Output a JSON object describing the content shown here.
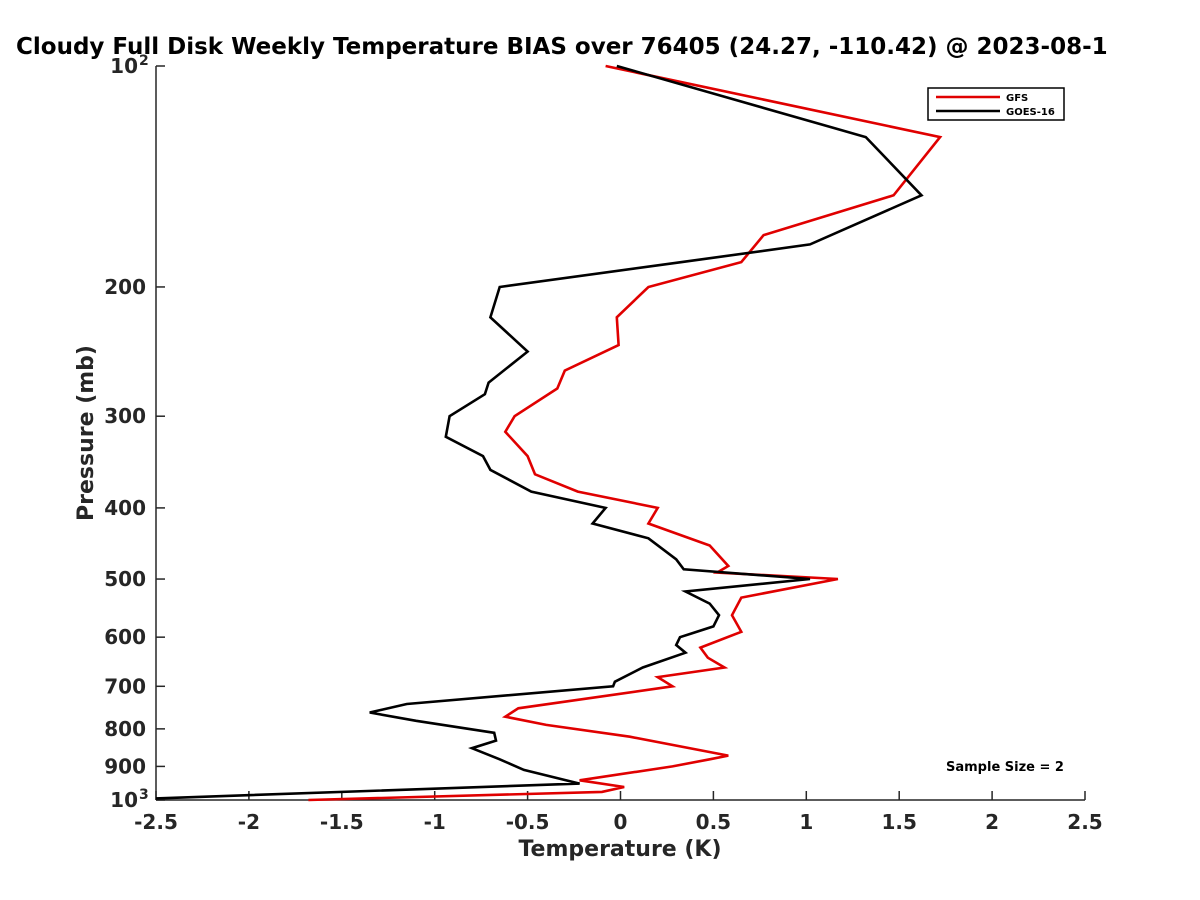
{
  "chart_data": {
    "type": "line",
    "title": "Cloudy Full Disk Weekly Temperature BIAS over 76405 (24.27, -110.42) @ 2023-08-1",
    "xlabel": "Temperature (K)",
    "ylabel": "Pressure (mb)",
    "xlim": [
      -2.5,
      2.5
    ],
    "ylim": [
      1000,
      100
    ],
    "yscale": "log",
    "x_ticks": [
      -2.5,
      -2,
      -1.5,
      -1,
      -0.5,
      0,
      0.5,
      1,
      1.5,
      2,
      2.5
    ],
    "x_tick_labels": [
      "-2.5",
      "-2",
      "-1.5",
      "-1",
      "-0.5",
      "0",
      "0.5",
      "1",
      "1.5",
      "2",
      "2.5"
    ],
    "y_ticks": [
      {
        "value": 100,
        "label": "10",
        "sup": "2"
      },
      {
        "value": 200,
        "label": "200",
        "sup": ""
      },
      {
        "value": 300,
        "label": "300",
        "sup": ""
      },
      {
        "value": 400,
        "label": "400",
        "sup": ""
      },
      {
        "value": 500,
        "label": "500",
        "sup": ""
      },
      {
        "value": 600,
        "label": "600",
        "sup": ""
      },
      {
        "value": 700,
        "label": "700",
        "sup": ""
      },
      {
        "value": 800,
        "label": "800",
        "sup": ""
      },
      {
        "value": 900,
        "label": "900",
        "sup": ""
      },
      {
        "value": 1000,
        "label": "10",
        "sup": "3"
      }
    ],
    "grid": false,
    "legend_position": "top-right",
    "series": [
      {
        "name": "GFS",
        "color": "#e00000",
        "points": [
          [
            -0.08,
            100
          ],
          [
            1.72,
            125
          ],
          [
            1.47,
            150
          ],
          [
            0.77,
            170
          ],
          [
            0.65,
            185
          ],
          [
            0.15,
            200
          ],
          [
            -0.02,
            220
          ],
          [
            -0.01,
            240
          ],
          [
            -0.3,
            260
          ],
          [
            -0.34,
            275
          ],
          [
            -0.57,
            300
          ],
          [
            -0.62,
            315
          ],
          [
            -0.5,
            340
          ],
          [
            -0.46,
            360
          ],
          [
            -0.23,
            380
          ],
          [
            0.2,
            400
          ],
          [
            0.15,
            420
          ],
          [
            0.48,
            450
          ],
          [
            0.58,
            480
          ],
          [
            0.52,
            490
          ],
          [
            1.17,
            500
          ],
          [
            0.65,
            530
          ],
          [
            0.6,
            560
          ],
          [
            0.65,
            590
          ],
          [
            0.43,
            620
          ],
          [
            0.47,
            640
          ],
          [
            0.56,
            660
          ],
          [
            0.2,
            680
          ],
          [
            0.28,
            700
          ],
          [
            -0.55,
            750
          ],
          [
            -0.62,
            770
          ],
          [
            -0.4,
            790
          ],
          [
            0.05,
            820
          ],
          [
            0.58,
            870
          ],
          [
            0.48,
            880
          ],
          [
            0.28,
            900
          ],
          [
            -0.22,
            940
          ],
          [
            0.02,
            960
          ],
          [
            -0.1,
            975
          ],
          [
            -1.68,
            1000
          ]
        ]
      },
      {
        "name": "GOES-16",
        "color": "#000000",
        "points": [
          [
            -0.02,
            100
          ],
          [
            1.32,
            125
          ],
          [
            1.62,
            150
          ],
          [
            1.02,
            175
          ],
          [
            0.33,
            185
          ],
          [
            -0.65,
            200
          ],
          [
            -0.7,
            220
          ],
          [
            -0.5,
            245
          ],
          [
            -0.71,
            270
          ],
          [
            -0.73,
            280
          ],
          [
            -0.92,
            300
          ],
          [
            -0.94,
            320
          ],
          [
            -0.74,
            340
          ],
          [
            -0.7,
            355
          ],
          [
            -0.48,
            380
          ],
          [
            -0.08,
            400
          ],
          [
            -0.15,
            420
          ],
          [
            0.15,
            440
          ],
          [
            0.3,
            470
          ],
          [
            0.34,
            485
          ],
          [
            1.02,
            500
          ],
          [
            0.35,
            520
          ],
          [
            0.48,
            540
          ],
          [
            0.53,
            560
          ],
          [
            0.5,
            580
          ],
          [
            0.32,
            600
          ],
          [
            0.3,
            615
          ],
          [
            0.35,
            630
          ],
          [
            0.12,
            660
          ],
          [
            -0.03,
            690
          ],
          [
            -0.04,
            700
          ],
          [
            -1.15,
            740
          ],
          [
            -1.35,
            760
          ],
          [
            -1.1,
            780
          ],
          [
            -0.68,
            810
          ],
          [
            -0.67,
            830
          ],
          [
            -0.8,
            850
          ],
          [
            -0.65,
            880
          ],
          [
            -0.52,
            910
          ],
          [
            -0.22,
            950
          ],
          [
            -2.5,
            995
          ]
        ]
      }
    ],
    "annotations": [
      {
        "text": "Sample Size = 2"
      }
    ]
  }
}
